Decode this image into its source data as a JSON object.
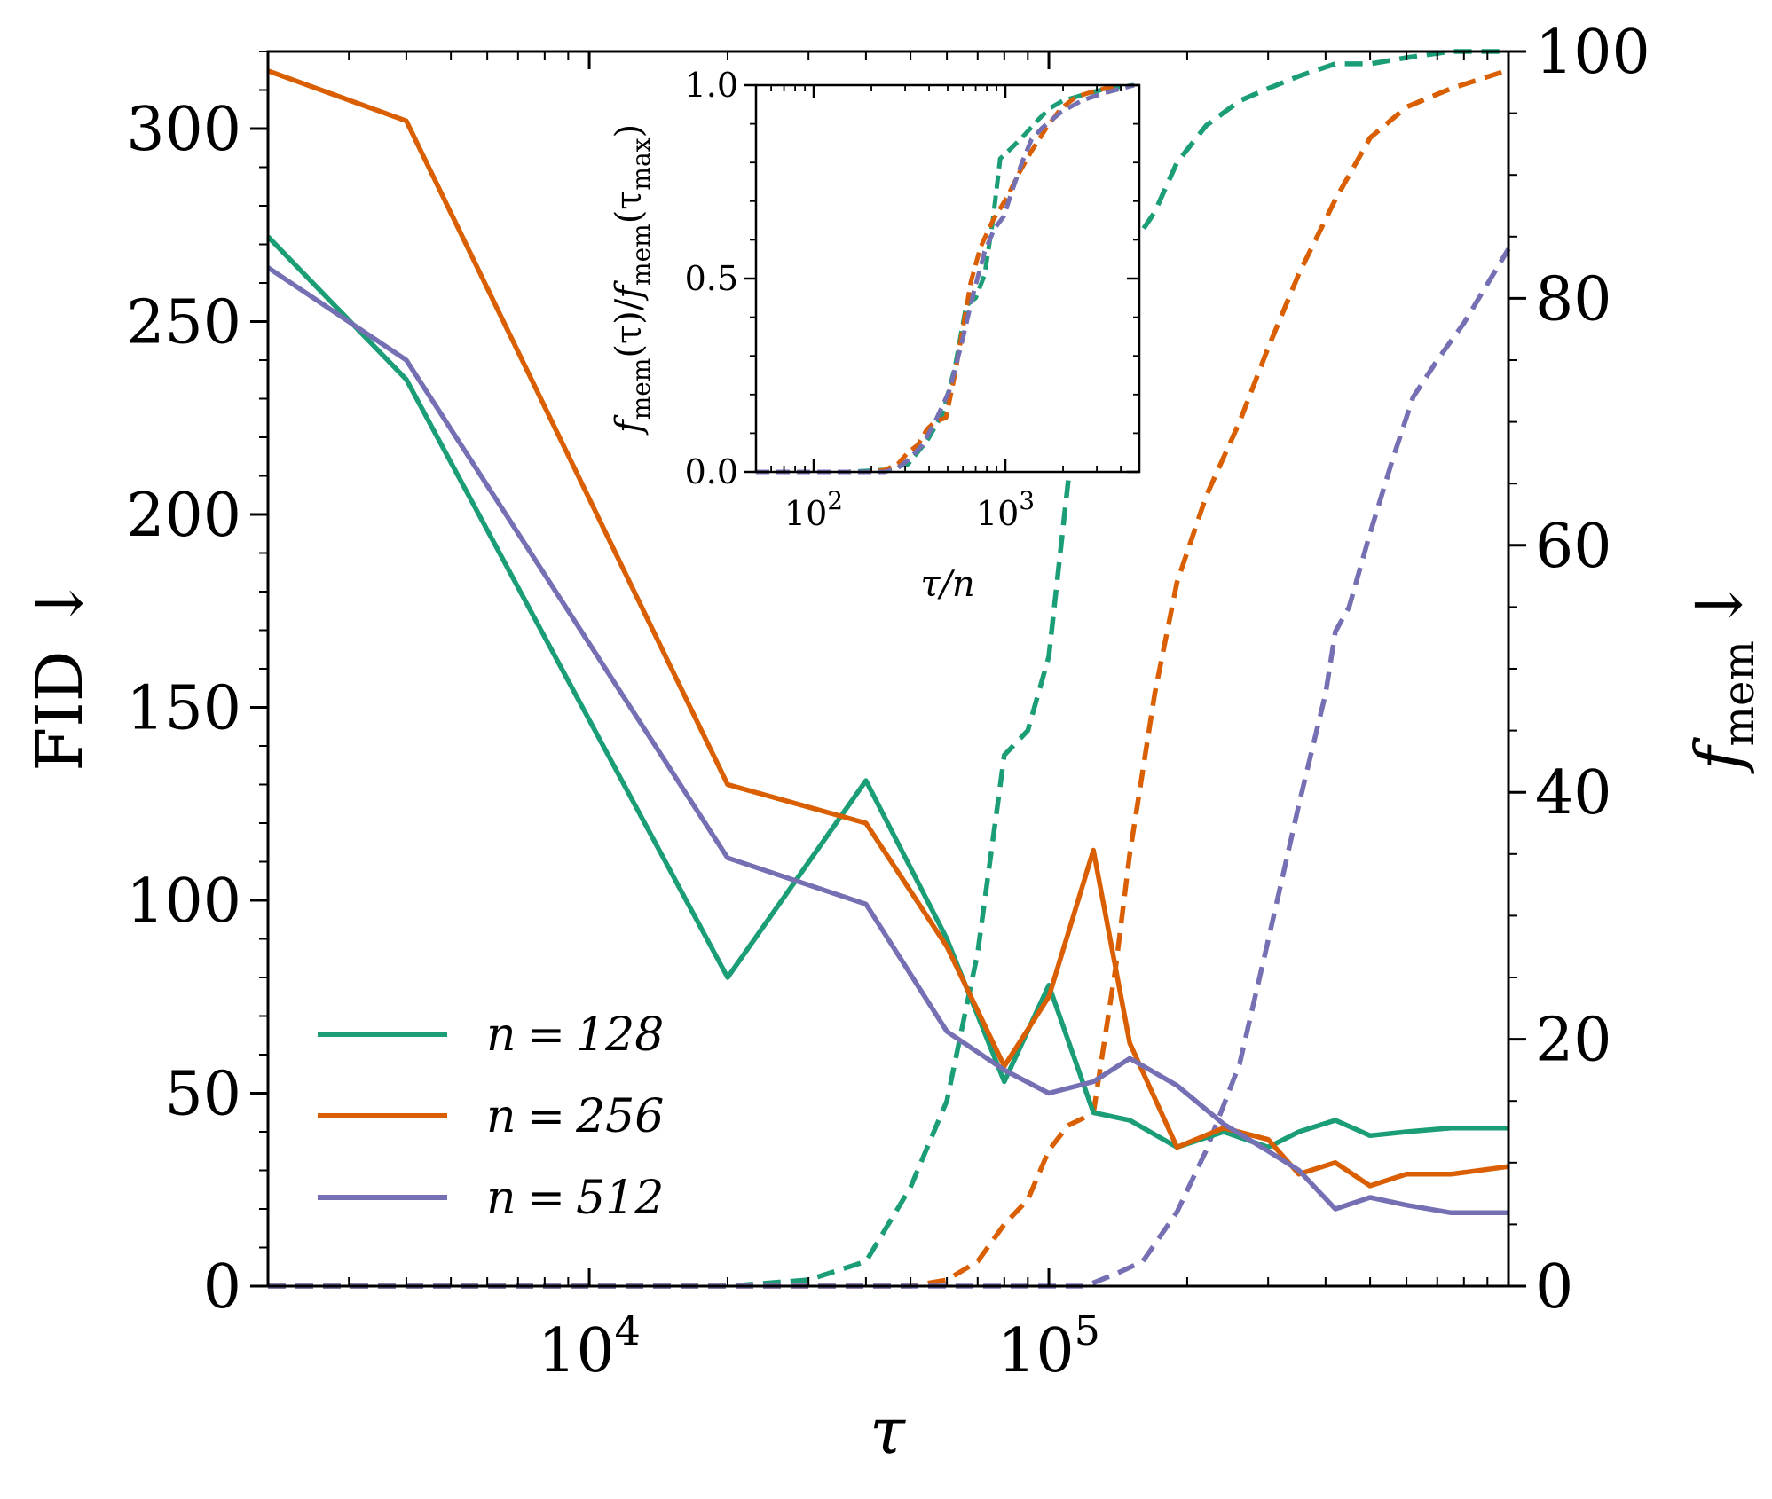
{
  "colors": {
    "n128": "#1b9e77",
    "n256": "#d95f02",
    "n512": "#7570b3"
  },
  "chart_data": [
    {
      "type": "line",
      "x_scale": "log",
      "xlim": [
        2000,
        1000000
      ],
      "ylim_left": [
        0,
        320
      ],
      "ylim_right": [
        0,
        100
      ],
      "xlabel": "τ",
      "ylabel_left": "FID ↓",
      "ylabel_right_base": "f",
      "ylabel_right_sub": "mem",
      "ylabel_right_arrow": "↓",
      "x_ticks": [
        {
          "value": 10000,
          "label_base": "10",
          "label_exp": "4"
        },
        {
          "value": 100000,
          "label_base": "10",
          "label_exp": "5"
        }
      ],
      "y_ticks_left": [
        "0",
        "50",
        "100",
        "150",
        "200",
        "250",
        "300"
      ],
      "y_ticks_right": [
        "0",
        "20",
        "40",
        "60",
        "80",
        "100"
      ],
      "legend_position": "lower-left",
      "series": [
        {
          "name": "n = 128",
          "color_key": "n128",
          "axis": "left",
          "style": "solid",
          "x": [
            2000,
            4000,
            20000,
            40000,
            60000,
            80000,
            100000,
            125000,
            150000,
            190000,
            240000,
            300000,
            350000,
            420000,
            500000,
            600000,
            750000,
            1000000
          ],
          "y": [
            272,
            235,
            80,
            131,
            90,
            53,
            78,
            45,
            43,
            36,
            40,
            36,
            40,
            43,
            39,
            40,
            41,
            41
          ]
        },
        {
          "name": "n = 256",
          "color_key": "n256",
          "axis": "left",
          "style": "solid",
          "x": [
            2000,
            4000,
            20000,
            40000,
            60000,
            80000,
            100000,
            125000,
            150000,
            190000,
            240000,
            300000,
            350000,
            420000,
            500000,
            600000,
            750000,
            1000000
          ],
          "y": [
            315,
            302,
            130,
            120,
            88,
            57,
            75,
            113,
            63,
            36,
            41,
            38,
            29,
            32,
            26,
            29,
            29,
            31
          ]
        },
        {
          "name": "n = 512",
          "color_key": "n512",
          "axis": "left",
          "style": "solid",
          "x": [
            2000,
            4000,
            20000,
            40000,
            60000,
            80000,
            100000,
            125000,
            150000,
            190000,
            240000,
            300000,
            350000,
            420000,
            500000,
            600000,
            750000,
            1000000
          ],
          "y": [
            264,
            240,
            111,
            99,
            66,
            56,
            50,
            53,
            59,
            52,
            42,
            35,
            30,
            20,
            23,
            21,
            19,
            19
          ]
        },
        {
          "name": "f_mem n = 128",
          "color_key": "n128",
          "axis": "right",
          "style": "dashed",
          "x": [
            2000,
            20000,
            30000,
            40000,
            50000,
            60000,
            70000,
            80000,
            90000,
            100000,
            110000,
            125000,
            140000,
            150000,
            170000,
            190000,
            220000,
            260000,
            300000,
            350000,
            420000,
            500000,
            600000,
            750000,
            1000000
          ],
          "y": [
            0,
            0,
            0.5,
            2,
            8,
            15,
            27,
            43,
            45,
            51,
            65,
            83,
            84,
            84,
            87,
            91,
            94,
            96,
            97,
            98,
            99,
            99,
            99.5,
            100,
            100
          ]
        },
        {
          "name": "f_mem n = 256",
          "color_key": "n256",
          "axis": "right",
          "style": "dashed",
          "x": [
            2000,
            40000,
            50000,
            60000,
            70000,
            80000,
            90000,
            100000,
            110000,
            125000,
            140000,
            150000,
            170000,
            190000,
            220000,
            260000,
            300000,
            350000,
            420000,
            500000,
            600000,
            750000,
            1000000
          ],
          "y": [
            0,
            0,
            0,
            0.5,
            2,
            5,
            7,
            11,
            13,
            14,
            26,
            35,
            48,
            57,
            64,
            70,
            76,
            82,
            88,
            93,
            95.5,
            97,
            98.5
          ]
        },
        {
          "name": "f_mem n = 512",
          "color_key": "n512",
          "axis": "right",
          "style": "dashed",
          "x": [
            2000,
            120000,
            140000,
            160000,
            190000,
            220000,
            260000,
            300000,
            350000,
            400000,
            420000,
            450000,
            500000,
            560000,
            620000,
            700000,
            800000,
            1000000
          ],
          "y": [
            0,
            0,
            1,
            2,
            6,
            11,
            18,
            28,
            39,
            48,
            53,
            55,
            61,
            67,
            72,
            75,
            78,
            84
          ]
        }
      ],
      "legend": [
        {
          "label_var": "n",
          "label_op": "=",
          "label_val": "128",
          "color_key": "n128"
        },
        {
          "label_var": "n",
          "label_op": "=",
          "label_val": "256",
          "color_key": "n256"
        },
        {
          "label_var": "n",
          "label_op": "=",
          "label_val": "512",
          "color_key": "n512"
        }
      ]
    },
    {
      "type": "line",
      "role": "inset",
      "x_scale": "log",
      "xlim": [
        50,
        5000
      ],
      "ylim": [
        0,
        1
      ],
      "xlabel": "τ/n",
      "ylabel": "f_mem(τ)/f_mem(τ_max)",
      "ylabel_parts": [
        "f",
        "mem",
        "(τ)/",
        "f",
        "mem",
        "(τ",
        "max",
        ")"
      ],
      "x_ticks": [
        {
          "value": 100,
          "label_base": "10",
          "label_exp": "2"
        },
        {
          "value": 1000,
          "label_base": "10",
          "label_exp": "3"
        }
      ],
      "y_ticks": [
        "0.0",
        "0.5",
        "1.0"
      ],
      "y_tick_values": [
        0,
        0.5,
        1
      ],
      "series": [
        {
          "name": "n = 128",
          "color_key": "n128",
          "style": "dashed",
          "x": [
            50,
            150,
            235,
            310,
            390,
            470,
            545,
            625,
            700,
            780,
            860,
            940,
            1090,
            1250,
            1480,
            1700,
            2000,
            2350,
            2750,
            3300,
            3900,
            4700
          ],
          "y": [
            0,
            0,
            0.005,
            0.02,
            0.08,
            0.15,
            0.27,
            0.43,
            0.45,
            0.51,
            0.65,
            0.81,
            0.84,
            0.87,
            0.91,
            0.94,
            0.96,
            0.97,
            0.98,
            0.99,
            0.995,
            1.0
          ]
        },
        {
          "name": "n = 256",
          "color_key": "n256",
          "style": "dashed",
          "x": [
            50,
            200,
            235,
            275,
            310,
            350,
            390,
            430,
            490,
            550,
            590,
            660,
            740,
            860,
            1020,
            1170,
            1370,
            1640,
            1950,
            2340,
            2930,
            3900
          ],
          "y": [
            0,
            0,
            0.005,
            0.02,
            0.05,
            0.07,
            0.11,
            0.13,
            0.14,
            0.26,
            0.35,
            0.49,
            0.58,
            0.65,
            0.71,
            0.77,
            0.83,
            0.89,
            0.94,
            0.97,
            0.985,
            1.0
          ]
        },
        {
          "name": "n = 512",
          "color_key": "n512",
          "style": "dashed",
          "x": [
            50,
            235,
            275,
            310,
            370,
            430,
            510,
            590,
            680,
            780,
            880,
            980,
            1090,
            1220,
            1370,
            1560,
            1950,
            2500,
            3300,
            4700
          ],
          "y": [
            0,
            0,
            0.01,
            0.03,
            0.07,
            0.13,
            0.21,
            0.33,
            0.46,
            0.57,
            0.63,
            0.66,
            0.73,
            0.8,
            0.86,
            0.89,
            0.93,
            0.96,
            0.98,
            1.0
          ]
        }
      ]
    }
  ]
}
